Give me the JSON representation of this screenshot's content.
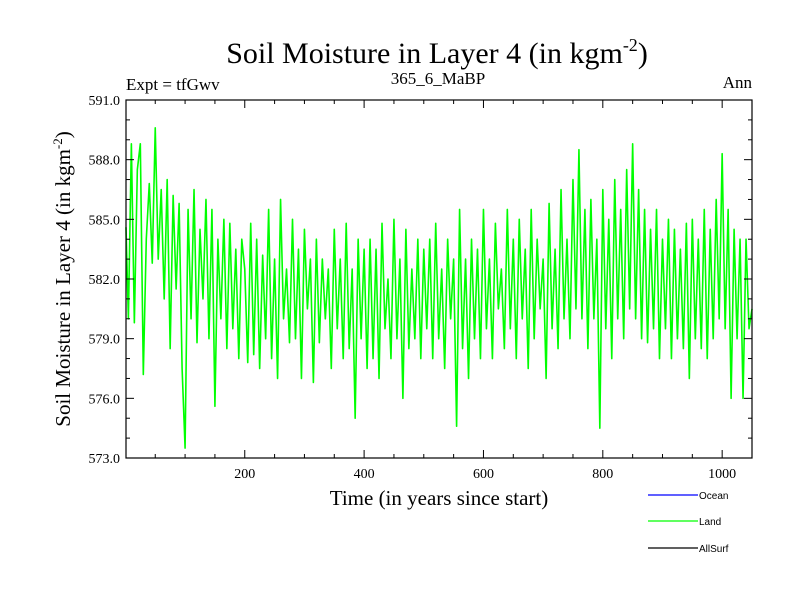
{
  "chart_data": {
    "type": "line",
    "title": "Soil Moisture in Layer 4 (in kgm",
    "title_sup": "-2",
    "title_close": ")",
    "subtitle_left": "Expt = tfGwv",
    "subtitle_center": "365_6_MaBP",
    "subtitle_right": "Ann",
    "xlabel": "Time (in years since start)",
    "ylabel": "Soil Moisture in Layer 4 (in kgm",
    "ylabel_sup": "-2",
    "ylabel_close": ")",
    "xlim": [
      1,
      1050
    ],
    "ylim": [
      573.0,
      591.0
    ],
    "xticks": [
      200,
      400,
      600,
      800,
      1000
    ],
    "xtick_labels": [
      "200",
      "400",
      "600",
      "800",
      "1000"
    ],
    "yticks": [
      573.0,
      576.0,
      579.0,
      582.0,
      585.0,
      588.0,
      591.0
    ],
    "ytick_labels": [
      "573.0",
      "576.0",
      "579.0",
      "582.0",
      "585.0",
      "588.0",
      "591.0"
    ],
    "grid": false,
    "legend_position": "bottom-right",
    "series": [
      {
        "name": "Ocean",
        "color": "#0000ff",
        "points": []
      },
      {
        "name": "Land",
        "color": "#00ff00",
        "points": [
          [
            1,
            584.6
          ],
          [
            5,
            580.0
          ],
          [
            10,
            588.8
          ],
          [
            15,
            579.8
          ],
          [
            20,
            587.5
          ],
          [
            25,
            588.8
          ],
          [
            30,
            577.2
          ],
          [
            35,
            584.0
          ],
          [
            40,
            586.8
          ],
          [
            45,
            582.8
          ],
          [
            50,
            589.6
          ],
          [
            55,
            583.0
          ],
          [
            60,
            586.5
          ],
          [
            65,
            581.0
          ],
          [
            70,
            587.0
          ],
          [
            75,
            578.5
          ],
          [
            80,
            586.2
          ],
          [
            85,
            581.5
          ],
          [
            90,
            585.8
          ],
          [
            95,
            577.5
          ],
          [
            100,
            573.5
          ],
          [
            105,
            585.5
          ],
          [
            110,
            580.0
          ],
          [
            115,
            586.5
          ],
          [
            120,
            578.8
          ],
          [
            125,
            584.5
          ],
          [
            130,
            581.0
          ],
          [
            135,
            586.0
          ],
          [
            140,
            579.0
          ],
          [
            145,
            585.5
          ],
          [
            150,
            575.6
          ],
          [
            155,
            584.0
          ],
          [
            160,
            580.0
          ],
          [
            165,
            585.0
          ],
          [
            170,
            578.5
          ],
          [
            175,
            584.8
          ],
          [
            180,
            579.5
          ],
          [
            185,
            583.5
          ],
          [
            190,
            578.0
          ],
          [
            195,
            584.0
          ],
          [
            200,
            582.5
          ],
          [
            205,
            577.8
          ],
          [
            210,
            584.8
          ],
          [
            215,
            578.2
          ],
          [
            220,
            584.0
          ],
          [
            225,
            577.5
          ],
          [
            230,
            583.2
          ],
          [
            235,
            579.0
          ],
          [
            240,
            585.5
          ],
          [
            245,
            578.0
          ],
          [
            250,
            583.0
          ],
          [
            255,
            577.0
          ],
          [
            260,
            586.0
          ],
          [
            265,
            580.0
          ],
          [
            270,
            582.5
          ],
          [
            275,
            578.8
          ],
          [
            280,
            585.0
          ],
          [
            285,
            579.0
          ],
          [
            290,
            583.5
          ],
          [
            295,
            577.0
          ],
          [
            300,
            584.5
          ],
          [
            305,
            580.5
          ],
          [
            310,
            583.0
          ],
          [
            315,
            576.8
          ],
          [
            320,
            584.0
          ],
          [
            325,
            578.8
          ],
          [
            330,
            583.0
          ],
          [
            335,
            580.0
          ],
          [
            340,
            582.5
          ],
          [
            345,
            577.5
          ],
          [
            350,
            584.5
          ],
          [
            355,
            579.5
          ],
          [
            360,
            583.0
          ],
          [
            365,
            578.0
          ],
          [
            370,
            584.8
          ],
          [
            375,
            578.5
          ],
          [
            380,
            582.5
          ],
          [
            385,
            575.0
          ],
          [
            390,
            584.0
          ],
          [
            395,
            579.0
          ],
          [
            400,
            583.5
          ],
          [
            405,
            577.5
          ],
          [
            410,
            584.0
          ],
          [
            415,
            578.0
          ],
          [
            420,
            583.5
          ],
          [
            425,
            577.0
          ],
          [
            430,
            584.8
          ],
          [
            435,
            579.5
          ],
          [
            440,
            582.0
          ],
          [
            445,
            578.0
          ],
          [
            450,
            585.0
          ],
          [
            455,
            579.0
          ],
          [
            460,
            583.0
          ],
          [
            465,
            576.0
          ],
          [
            470,
            584.5
          ],
          [
            475,
            578.5
          ],
          [
            480,
            582.5
          ],
          [
            485,
            579.0
          ],
          [
            490,
            584.0
          ],
          [
            495,
            578.0
          ],
          [
            500,
            583.5
          ],
          [
            505,
            579.5
          ],
          [
            510,
            584.0
          ],
          [
            515,
            578.0
          ],
          [
            520,
            584.8
          ],
          [
            525,
            579.0
          ],
          [
            530,
            582.5
          ],
          [
            535,
            577.5
          ],
          [
            540,
            584.0
          ],
          [
            545,
            580.0
          ],
          [
            550,
            583.0
          ],
          [
            555,
            574.6
          ],
          [
            560,
            585.5
          ],
          [
            565,
            578.5
          ],
          [
            570,
            583.0
          ],
          [
            575,
            577.0
          ],
          [
            580,
            584.0
          ],
          [
            585,
            579.0
          ],
          [
            590,
            583.5
          ],
          [
            595,
            578.0
          ],
          [
            600,
            585.5
          ],
          [
            605,
            579.5
          ],
          [
            610,
            583.0
          ],
          [
            615,
            578.0
          ],
          [
            620,
            584.8
          ],
          [
            625,
            580.5
          ],
          [
            630,
            582.5
          ],
          [
            635,
            578.5
          ],
          [
            640,
            585.5
          ],
          [
            645,
            579.5
          ],
          [
            650,
            584.0
          ],
          [
            655,
            578.0
          ],
          [
            660,
            585.0
          ],
          [
            665,
            580.0
          ],
          [
            670,
            583.5
          ],
          [
            675,
            577.5
          ],
          [
            680,
            585.5
          ],
          [
            685,
            579.0
          ],
          [
            690,
            584.0
          ],
          [
            695,
            580.5
          ],
          [
            700,
            583.0
          ],
          [
            705,
            577.0
          ],
          [
            710,
            585.8
          ],
          [
            715,
            579.5
          ],
          [
            720,
            583.5
          ],
          [
            725,
            578.5
          ],
          [
            730,
            586.5
          ],
          [
            735,
            580.0
          ],
          [
            740,
            584.0
          ],
          [
            745,
            579.0
          ],
          [
            750,
            587.0
          ],
          [
            755,
            580.5
          ],
          [
            760,
            588.5
          ],
          [
            765,
            580.0
          ],
          [
            770,
            585.5
          ],
          [
            775,
            578.5
          ],
          [
            780,
            586.0
          ],
          [
            785,
            580.0
          ],
          [
            790,
            584.0
          ],
          [
            795,
            574.5
          ],
          [
            800,
            586.5
          ],
          [
            805,
            579.5
          ],
          [
            810,
            585.0
          ],
          [
            815,
            578.0
          ],
          [
            820,
            587.0
          ],
          [
            825,
            580.0
          ],
          [
            830,
            585.5
          ],
          [
            835,
            579.0
          ],
          [
            840,
            587.5
          ],
          [
            845,
            580.5
          ],
          [
            850,
            588.8
          ],
          [
            855,
            580.0
          ],
          [
            860,
            586.5
          ],
          [
            865,
            579.0
          ],
          [
            870,
            585.5
          ],
          [
            875,
            578.8
          ],
          [
            880,
            584.5
          ],
          [
            885,
            579.5
          ],
          [
            890,
            585.5
          ],
          [
            895,
            578.0
          ],
          [
            900,
            584.0
          ],
          [
            905,
            579.5
          ],
          [
            910,
            585.0
          ],
          [
            915,
            578.0
          ],
          [
            920,
            584.5
          ],
          [
            925,
            579.0
          ],
          [
            930,
            583.5
          ],
          [
            935,
            578.5
          ],
          [
            940,
            584.8
          ],
          [
            945,
            577.0
          ],
          [
            950,
            585.0
          ],
          [
            955,
            579.0
          ],
          [
            960,
            584.0
          ],
          [
            965,
            578.5
          ],
          [
            970,
            585.5
          ],
          [
            975,
            578.0
          ],
          [
            980,
            584.5
          ],
          [
            985,
            579.0
          ],
          [
            990,
            586.0
          ],
          [
            995,
            580.0
          ],
          [
            1000,
            588.3
          ],
          [
            1005,
            579.5
          ],
          [
            1010,
            585.5
          ],
          [
            1015,
            576.0
          ],
          [
            1020,
            584.5
          ],
          [
            1025,
            579.0
          ],
          [
            1030,
            584.0
          ],
          [
            1035,
            576.0
          ],
          [
            1040,
            584.0
          ],
          [
            1045,
            579.5
          ],
          [
            1050,
            580.5
          ]
        ]
      },
      {
        "name": "AllSurf",
        "color": "#000000",
        "points": []
      }
    ]
  }
}
